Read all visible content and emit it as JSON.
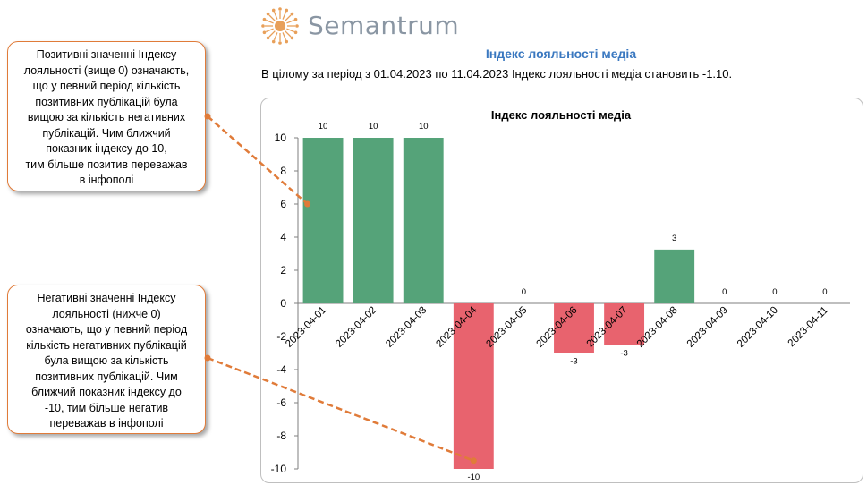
{
  "brand": {
    "name": "Semantrum"
  },
  "heading": "Індекс лояльності медіа",
  "summary": "В цілому за період з 01.04.2023 по 11.04.2023 Індекс лояльності медіа становить -1.10.",
  "callouts": {
    "positive": "Позитивні значенні Індексу\nлояльності (вище 0) означають,\nщо у певний період кількість\nпозитивних публікацій була\nвищою за кількість негативних\nпублікацій. Чим ближчий\nпоказник індексу до 10,\nтим більше позитив переважав\nв інфополі",
    "negative": "Негативні значенні Індексу\nлояльності (нижче 0)\nозначають, що у певний період\nкількість негативних публікацій\nбула вищою за кількість\nпозитивних публікацій. Чим\nближчий показник індексу до\n-10, тим більше негатив\nпереважав в інфополі"
  },
  "colors": {
    "positive": "#55a379",
    "negative": "#e8636e",
    "accent": "#e07b39",
    "heading": "#3a78c0",
    "logo_sun": "#e8a05a"
  },
  "chart_data": {
    "type": "bar",
    "title": "Індекс лояльності медіа",
    "categories": [
      "2023-04-01",
      "2023-04-02",
      "2023-04-03",
      "2023-04-04",
      "2023-04-05",
      "2023-04-06",
      "2023-04-07",
      "2023-04-08",
      "2023-04-09",
      "2023-04-10",
      "2023-04-11"
    ],
    "values": [
      10,
      10,
      10,
      -10,
      0,
      -3,
      -2.5,
      3.25,
      0,
      0,
      0
    ],
    "data_labels": [
      "10",
      "10",
      "10",
      "-10",
      "0",
      "-3",
      "-3",
      "3",
      "0",
      "0",
      "0"
    ],
    "yticks": [
      10,
      8,
      6,
      4,
      2,
      0,
      -2,
      -4,
      -6,
      -8,
      -10
    ],
    "ylim": [
      -10,
      10
    ],
    "xlabel": "",
    "ylabel": "",
    "grid": false,
    "legend": "none"
  }
}
